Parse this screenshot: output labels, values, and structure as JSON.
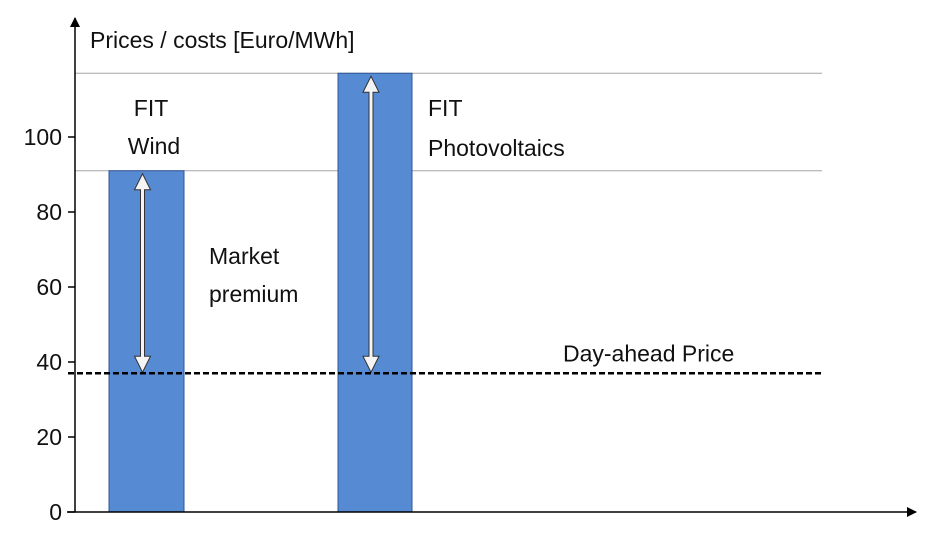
{
  "chart_data": {
    "type": "bar",
    "ylabel": "Prices / costs [Euro/MWh]",
    "ylim": [
      0,
      120
    ],
    "yticks": [
      0,
      20,
      40,
      60,
      80,
      100
    ],
    "categories": [
      {
        "label_lines": [
          "FIT",
          "Wind"
        ],
        "value": 91
      },
      {
        "label_lines": [
          "FIT",
          "Photovoltaics"
        ],
        "value": 117
      }
    ],
    "reference_line": {
      "label": "Day-ahead Price",
      "value": 37,
      "style": "dashed"
    },
    "annotation": {
      "label_lines": [
        "Market",
        "premium"
      ]
    },
    "bar_color": "#568bd3",
    "bar_edge_color": "#2f5597",
    "grid": "horizontal lines at bar tops",
    "legend": "none"
  }
}
